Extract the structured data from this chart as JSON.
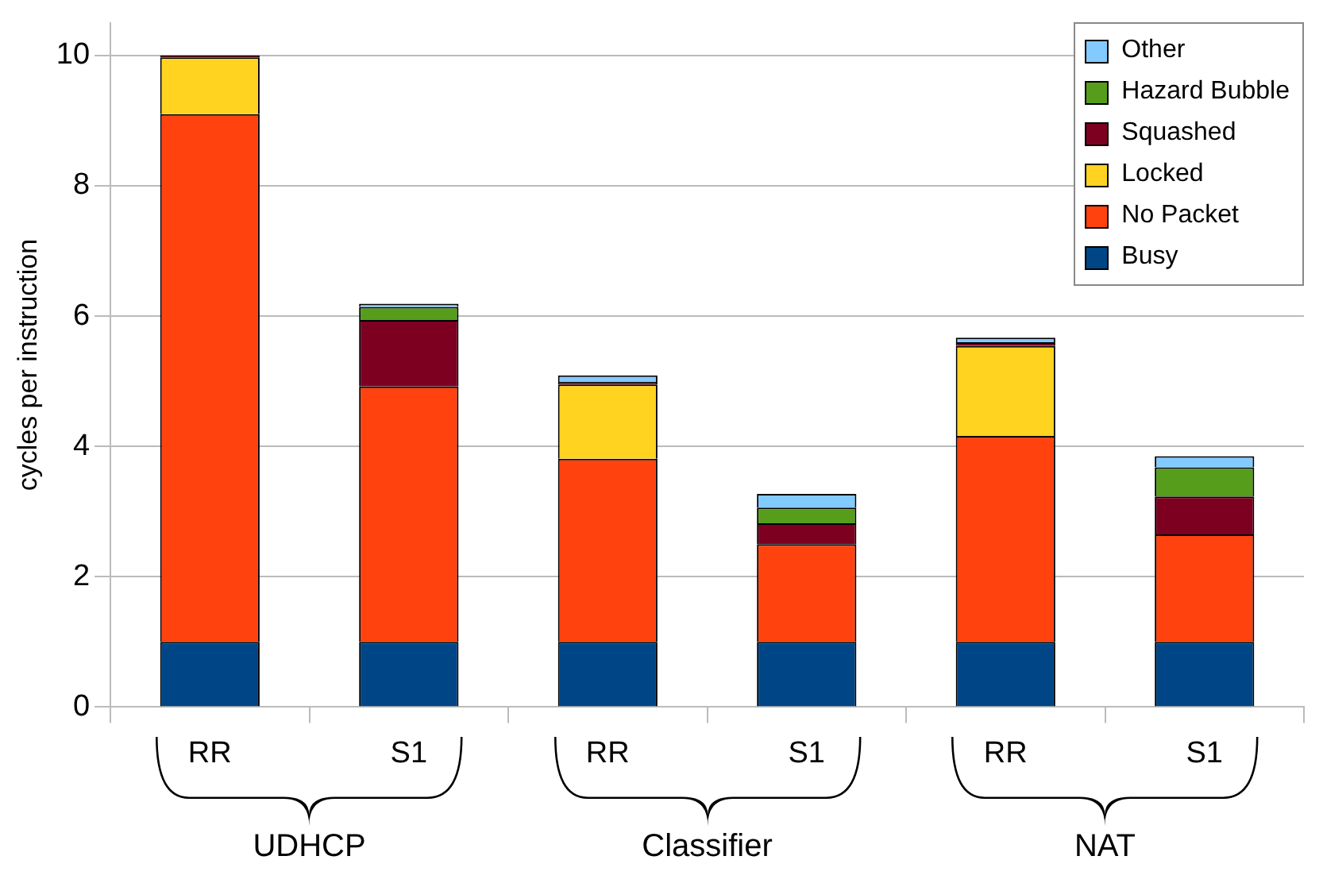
{
  "chart_data": {
    "type": "bar",
    "stacked": true,
    "ylabel": "cycles per instruction",
    "categories": [
      "RR",
      "S1",
      "RR",
      "S1",
      "RR",
      "S1"
    ],
    "series": [
      {
        "name": "Busy",
        "color": "#004586",
        "values": [
          1,
          1,
          1,
          1,
          1,
          1
        ]
      },
      {
        "name": "No Packet",
        "color": "#ff420e",
        "values": [
          8.1,
          3.92,
          2.81,
          1.5,
          3.16,
          1.65
        ]
      },
      {
        "name": "Locked",
        "color": "#ffd320",
        "values": [
          0.87,
          0,
          1.14,
          0,
          1.38,
          0
        ]
      },
      {
        "name": "Squashed",
        "color": "#7e0021",
        "values": [
          0.03,
          1.02,
          0.04,
          0.32,
          0.06,
          0.58
        ]
      },
      {
        "name": "Hazard Bubble",
        "color": "#579d1c",
        "values": [
          0,
          0.2,
          0,
          0.24,
          0,
          0.45
        ]
      },
      {
        "name": "Other",
        "color": "#83caff",
        "values": [
          0,
          0.05,
          0.1,
          0.21,
          0.07,
          0.17
        ]
      }
    ],
    "annotations": [
      "UDHCP",
      "Classifier",
      "NAT"
    ],
    "ylim": [
      0,
      10.5
    ],
    "yticks": [
      0,
      2,
      4,
      6,
      8,
      10
    ],
    "grid": "y",
    "legend": "top right"
  }
}
